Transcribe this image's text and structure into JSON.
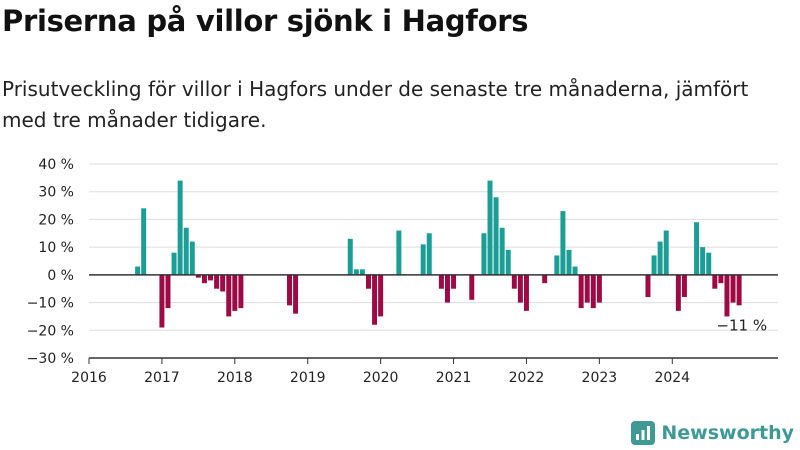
{
  "title": "Priserna på villor sjönk i Hagfors",
  "subtitle": "Prisutveckling för villor i Hagfors under de senaste tre månaderna, jämfört med tre månader tidigare.",
  "brand": {
    "name": "Newsworthy",
    "icon": "newsworthy-logo-icon",
    "color": "#3f9a95"
  },
  "colors": {
    "positive": "#1a9e96",
    "negative": "#9e0a45",
    "grid": "#dddddd",
    "axis": "#333333"
  },
  "chart_data": {
    "type": "bar",
    "title": "",
    "xlabel": "",
    "ylabel": "",
    "ylim": [
      -30,
      40
    ],
    "yticks": [
      -30,
      -20,
      -10,
      0,
      10,
      20,
      30,
      40
    ],
    "ytick_labels": [
      "−30 %",
      "−20 %",
      "−10 %",
      "0 %",
      "10 %",
      "20 %",
      "30 %",
      "40 %"
    ],
    "xlim": [
      2016,
      2025.45
    ],
    "xticks": [
      2016,
      2017,
      2018,
      2019,
      2020,
      2021,
      2022,
      2023,
      2024
    ],
    "xtick_labels": [
      "2016",
      "2017",
      "2018",
      "2019",
      "2020",
      "2021",
      "2022",
      "2023",
      "2024"
    ],
    "grid": true,
    "series": [
      {
        "values": [
          {
            "x": "2016-09",
            "y": 3
          },
          {
            "x": "2016-10",
            "y": 24
          },
          {
            "x": "2017-01",
            "y": -19
          },
          {
            "x": "2017-02",
            "y": -12
          },
          {
            "x": "2017-03",
            "y": 8
          },
          {
            "x": "2017-04",
            "y": 34
          },
          {
            "x": "2017-05",
            "y": 17
          },
          {
            "x": "2017-06",
            "y": 12
          },
          {
            "x": "2017-07",
            "y": -1
          },
          {
            "x": "2017-08",
            "y": -3
          },
          {
            "x": "2017-09",
            "y": -2
          },
          {
            "x": "2017-10",
            "y": -5
          },
          {
            "x": "2017-11",
            "y": -6
          },
          {
            "x": "2017-12",
            "y": -15
          },
          {
            "x": "2018-01",
            "y": -13
          },
          {
            "x": "2018-02",
            "y": -12
          },
          {
            "x": "2018-10",
            "y": -11
          },
          {
            "x": "2018-11",
            "y": -14
          },
          {
            "x": "2019-08",
            "y": 13
          },
          {
            "x": "2019-09",
            "y": 2
          },
          {
            "x": "2019-10",
            "y": 2
          },
          {
            "x": "2019-11",
            "y": -5
          },
          {
            "x": "2019-12",
            "y": -18
          },
          {
            "x": "2020-01",
            "y": -15
          },
          {
            "x": "2020-04",
            "y": 16
          },
          {
            "x": "2020-08",
            "y": 11
          },
          {
            "x": "2020-09",
            "y": 15
          },
          {
            "x": "2020-11",
            "y": -5
          },
          {
            "x": "2020-12",
            "y": -10
          },
          {
            "x": "2021-01",
            "y": -5
          },
          {
            "x": "2021-04",
            "y": -9
          },
          {
            "x": "2021-06",
            "y": 15
          },
          {
            "x": "2021-07",
            "y": 34
          },
          {
            "x": "2021-08",
            "y": 28
          },
          {
            "x": "2021-09",
            "y": 17
          },
          {
            "x": "2021-10",
            "y": 9
          },
          {
            "x": "2021-11",
            "y": -5
          },
          {
            "x": "2021-12",
            "y": -10
          },
          {
            "x": "2022-01",
            "y": -13
          },
          {
            "x": "2022-04",
            "y": -3
          },
          {
            "x": "2022-06",
            "y": 7
          },
          {
            "x": "2022-07",
            "y": 23
          },
          {
            "x": "2022-08",
            "y": 9
          },
          {
            "x": "2022-09",
            "y": 3
          },
          {
            "x": "2022-10",
            "y": -12
          },
          {
            "x": "2022-11",
            "y": -10
          },
          {
            "x": "2022-12",
            "y": -12
          },
          {
            "x": "2023-01",
            "y": -10
          },
          {
            "x": "2023-09",
            "y": -8
          },
          {
            "x": "2023-10",
            "y": 7
          },
          {
            "x": "2023-11",
            "y": 12
          },
          {
            "x": "2023-12",
            "y": 16
          },
          {
            "x": "2024-02",
            "y": -13
          },
          {
            "x": "2024-03",
            "y": -8
          },
          {
            "x": "2024-05",
            "y": 19
          },
          {
            "x": "2024-06",
            "y": 10
          },
          {
            "x": "2024-07",
            "y": 8
          },
          {
            "x": "2024-08",
            "y": -5
          },
          {
            "x": "2024-09",
            "y": -3
          },
          {
            "x": "2024-10",
            "y": -15
          },
          {
            "x": "2024-11",
            "y": -10
          },
          {
            "x": "2024-12",
            "y": -11
          }
        ]
      }
    ],
    "annotations": [
      {
        "x": "2024-12",
        "y": -11,
        "text": "−11 %"
      }
    ]
  }
}
